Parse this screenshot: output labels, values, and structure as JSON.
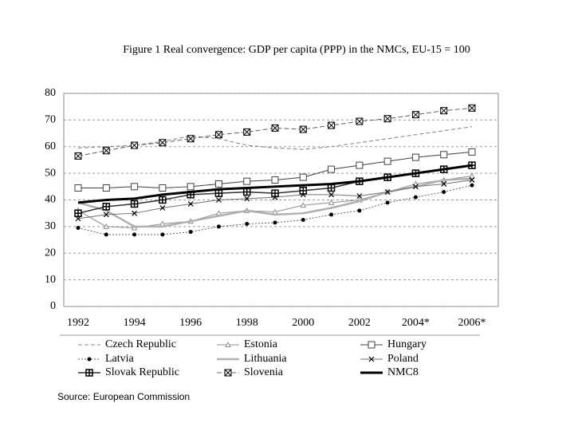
{
  "chart_data": {
    "type": "line",
    "title": "Figure 1    Real convergence: GDP per capita (PPP) in the NMCs, EU-15 = 100",
    "source": "Source: European Commission",
    "categories": [
      "1992",
      null,
      "1994",
      null,
      "1996",
      null,
      "1998",
      null,
      "2000",
      null,
      "2002",
      null,
      "2004*",
      null,
      "2006*"
    ],
    "ylim": [
      0,
      80
    ],
    "yticks": [
      0,
      10,
      20,
      30,
      40,
      50,
      60,
      70,
      80
    ],
    "grid": true,
    "series": [
      {
        "name": "Czech Republic",
        "color": "#808080",
        "marker": "none",
        "dash": "5,3",
        "width": 1,
        "values": [
          59.5,
          60,
          60.5,
          62,
          64,
          63,
          60.5,
          59.5,
          59,
          60,
          61.5,
          63,
          64.5,
          66,
          67.5
        ]
      },
      {
        "name": "Estonia",
        "color": "#909090",
        "marker": "triangle",
        "dash": "none",
        "width": 1,
        "values": [
          36,
          30,
          29.5,
          31,
          32,
          35,
          36,
          35.5,
          38,
          39,
          40,
          43,
          46,
          47.5,
          49
        ]
      },
      {
        "name": "Hungary",
        "color": "#404040",
        "marker": "square",
        "dash": "none",
        "width": 1,
        "values": [
          44.5,
          44.5,
          45,
          44.5,
          45,
          46,
          47,
          47.5,
          48.5,
          51.5,
          53,
          54.5,
          56,
          57,
          58
        ]
      },
      {
        "name": "Latvia",
        "color": "#606060",
        "marker": "dot",
        "dash": "2,2",
        "width": 1,
        "values": [
          29.5,
          27,
          27,
          27,
          28,
          30,
          31,
          31.5,
          32.5,
          34.5,
          36,
          39,
          41,
          43,
          45.5
        ]
      },
      {
        "name": "Lithuania",
        "color": "#b0b0b0",
        "marker": "none",
        "dash": "none",
        "width": 2.5,
        "values": [
          39,
          36,
          30,
          30,
          32,
          34,
          36,
          34.5,
          35,
          37,
          39.5,
          43,
          45,
          47.5,
          48
        ]
      },
      {
        "name": "Poland",
        "color": "#707070",
        "marker": "cross",
        "dash": "none",
        "width": 1,
        "values": [
          33,
          34.5,
          35,
          37,
          38.5,
          40,
          40.5,
          41,
          42,
          42,
          41.5,
          43,
          45,
          46,
          47.5
        ]
      },
      {
        "name": "Slovak Republic",
        "color": "#303030",
        "marker": "plusbox",
        "dash": "none",
        "width": 1.5,
        "values": [
          35,
          37.5,
          38.5,
          40,
          42,
          42.5,
          43,
          42.5,
          43.5,
          44.5,
          47,
          48.5,
          50,
          51.5,
          53
        ]
      },
      {
        "name": "Slovenia",
        "color": "#606060",
        "marker": "crossbox",
        "dash": "6,3",
        "width": 1,
        "values": [
          56.5,
          58.5,
          60.5,
          61.5,
          63,
          64.5,
          65.5,
          67,
          66.5,
          68,
          69.5,
          70.5,
          72,
          73.5,
          74.5
        ]
      },
      {
        "name": "NMC8",
        "color": "#000000",
        "marker": "none",
        "dash": "none",
        "width": 3,
        "values": [
          39,
          40,
          40.5,
          42,
          43,
          44,
          44.5,
          45,
          45.5,
          46,
          47,
          48.5,
          50,
          51.5,
          53
        ]
      }
    ]
  }
}
